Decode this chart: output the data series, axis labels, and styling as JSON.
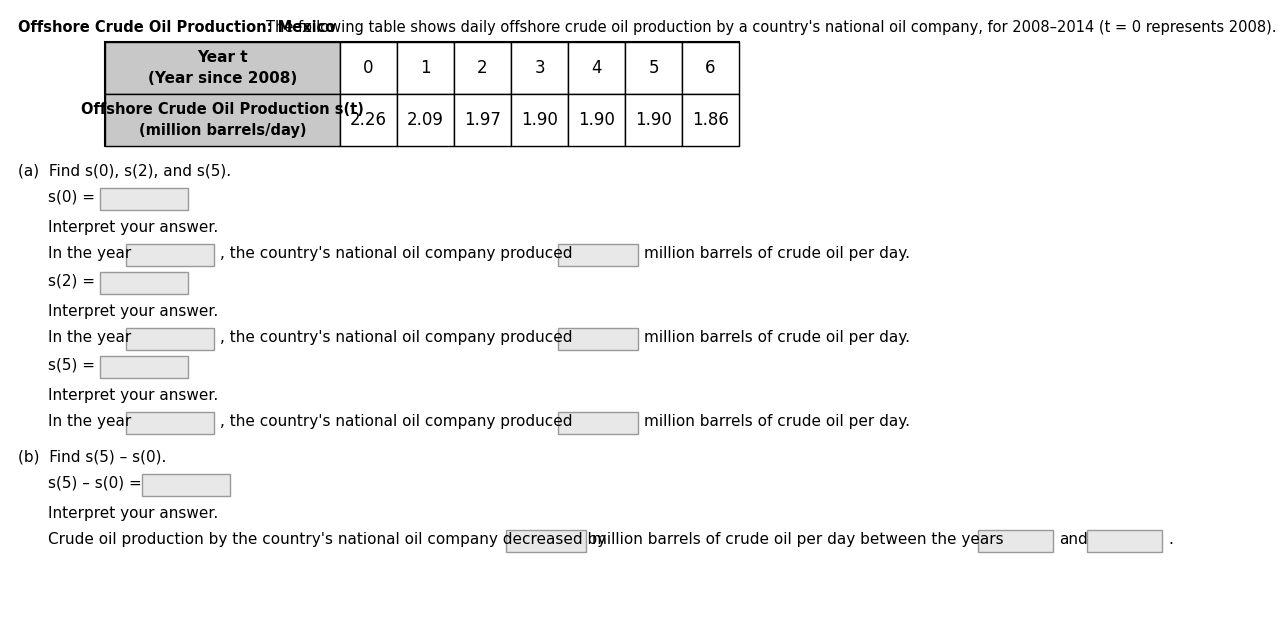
{
  "title_bold": "Offshore Crude Oil Production: Mexico",
  "title_normal": "The following table shows daily offshore crude oil production by a country's national oil company, for 2008–2014 (t = 0 represents 2008).",
  "table_years": [
    0,
    1,
    2,
    3,
    4,
    5,
    6
  ],
  "table_values": [
    2.26,
    2.09,
    1.97,
    1.9,
    1.9,
    1.9,
    1.86
  ],
  "bg_color": "#ffffff",
  "table_header_bg": "#c8c8c8",
  "input_box_bg": "#e8e8e8",
  "input_box_border": "#999999"
}
